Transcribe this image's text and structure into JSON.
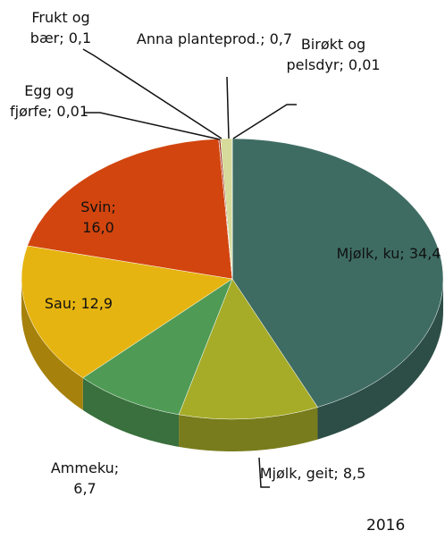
{
  "chart_data": {
    "type": "pie3d",
    "subtitle": "2016",
    "label_separator": ";",
    "categories": [
      "Mjølk, ku",
      "Mjølk, geit",
      "Ammeku",
      "Sau",
      "Svin",
      "Egg og fjørfe",
      "Frukt og bær",
      "Anna planteprod.",
      "Birøkt og pelsdyr"
    ],
    "values": [
      34.4,
      8.5,
      6.7,
      12.9,
      16.0,
      0.01,
      0.1,
      0.7,
      0.01
    ],
    "value_labels": [
      "34,4",
      "8,5",
      "6,7",
      "12,9",
      "16,0",
      "0,01",
      "0,1",
      "0,7",
      "0,01"
    ],
    "colors": [
      "#3e6c63",
      "#a6ac27",
      "#4f9b55",
      "#e6b411",
      "#d2450f",
      "#8a8a8a",
      "#9b2a1c",
      "#d6da9a",
      "#c9b16a"
    ]
  }
}
